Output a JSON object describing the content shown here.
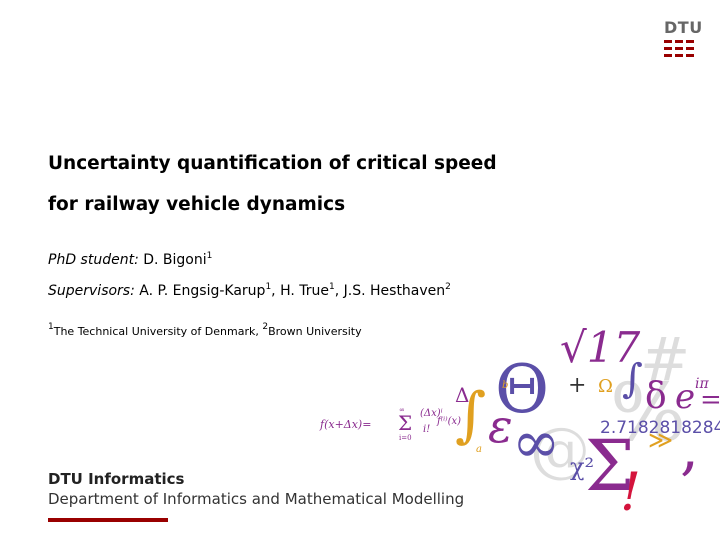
{
  "logo": "DTU",
  "title": [
    "Uncertainty quantification of critical speed",
    "for railway vehicle dynamics"
  ],
  "authors": [
    {
      "role": "PhD student:",
      "names": [
        {
          "name": "D. Bigoni",
          "affiliation": "1"
        }
      ]
    },
    {
      "role": "Supervisors:",
      "separator": ",",
      "names": [
        {
          "name": "A. P. Engsig-Karup",
          "affiliation": "1"
        },
        {
          "name": "H. True",
          "affiliation": "1"
        },
        {
          "name": "J.S. Hesthaven",
          "affiliation": "2"
        }
      ]
    }
  ],
  "affiliations": [
    {
      "mark": "1",
      "name": "The Technical University of Denmark,"
    },
    {
      "mark": "2",
      "name": "Brown University"
    }
  ],
  "footer": {
    "unit": "DTU Informatics",
    "department": "Department of Informatics and Mathematical Modelling"
  },
  "decoration": [
    "√17",
    "Δ",
    "∫",
    "Θ",
    "+",
    "Ω",
    "∫",
    "δ",
    "e",
    "iπ",
    "=",
    "ε",
    "∞",
    "2.7182818284",
    "χ²",
    "Σ",
    "!",
    ",",
    "≫",
    "b",
    "a",
    "f(x+Δx)=",
    "Σ",
    "(Δx)ⁱ",
    "i!",
    "f⁽ⁱ⁾(x)",
    "∞",
    "i=0",
    "%",
    "@",
    "#"
  ]
}
